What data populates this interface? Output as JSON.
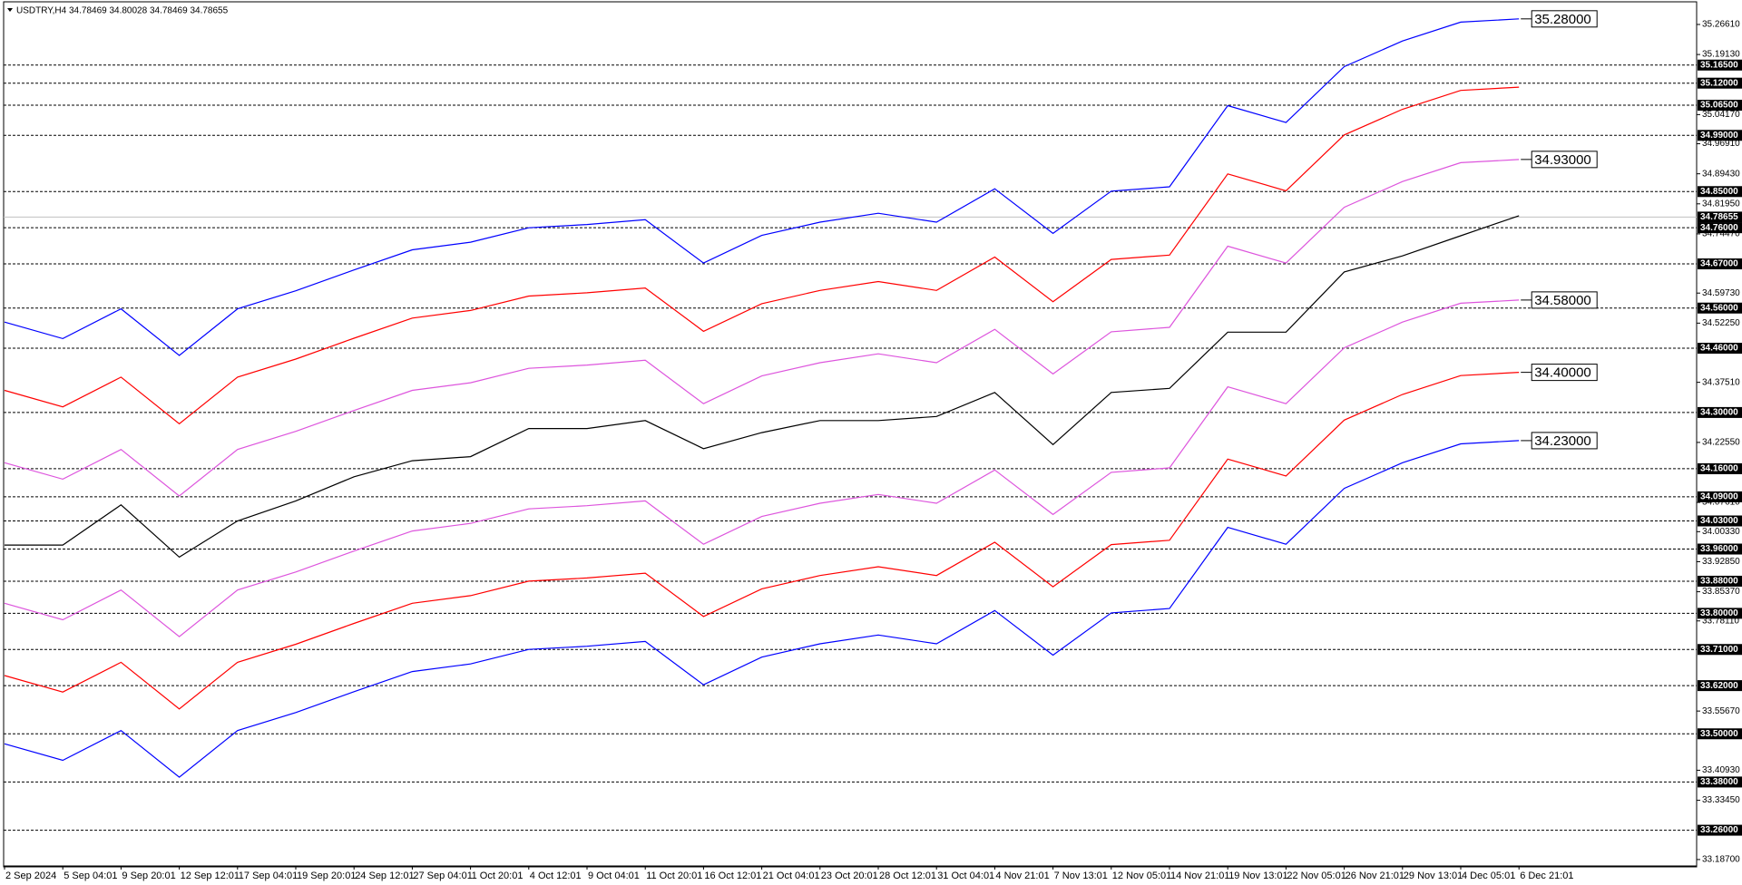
{
  "chart_data": {
    "type": "line",
    "title": "USDTRY,H4  34.78469 34.80028 34.78469 34.78655",
    "categories": [
      "2 Sep 2024",
      "5 Sep 04:01",
      "9 Sep 20:01",
      "12 Sep 12:01",
      "17 Sep 04:01",
      "19 Sep 20:01",
      "24 Sep 12:01",
      "27 Sep 04:01",
      "1 Oct 20:01",
      "4 Oct 12:01",
      "9 Oct 04:01",
      "11 Oct 20:01",
      "16 Oct 12:01",
      "21 Oct 04:01",
      "23 Oct 20:01",
      "28 Oct 12:01",
      "31 Oct 04:01",
      "4 Nov 21:01",
      "7 Nov 13:01",
      "12 Nov 05:01",
      "14 Nov 21:01",
      "19 Nov 13:01",
      "22 Nov 05:01",
      "26 Nov 21:01",
      "29 Nov 13:01",
      "4 Dec 05:01",
      "6 Dec 21:01"
    ],
    "series": [
      {
        "color": "#0000ff",
        "values": [
          34.525,
          34.484,
          34.558,
          34.442,
          34.558,
          34.603,
          34.655,
          34.705,
          34.724,
          34.76,
          34.768,
          34.78,
          34.672,
          34.741,
          34.774,
          34.796,
          34.774,
          34.857,
          34.746,
          34.851,
          34.862,
          35.064,
          35.022,
          35.161,
          35.225,
          35.272,
          35.28
        ]
      },
      {
        "color": "#ff0000",
        "values": [
          34.355,
          34.314,
          34.388,
          34.272,
          34.388,
          34.433,
          34.485,
          34.535,
          34.554,
          34.59,
          34.598,
          34.61,
          34.502,
          34.571,
          34.604,
          34.626,
          34.604,
          34.687,
          34.576,
          34.681,
          34.692,
          34.894,
          34.852,
          34.991,
          35.055,
          35.102,
          35.11
        ]
      },
      {
        "color": "#dd55dd",
        "values": [
          34.175,
          34.134,
          34.208,
          34.092,
          34.208,
          34.253,
          34.305,
          34.355,
          34.374,
          34.41,
          34.418,
          34.43,
          34.322,
          34.391,
          34.424,
          34.446,
          34.424,
          34.507,
          34.396,
          34.501,
          34.512,
          34.714,
          34.672,
          34.811,
          34.875,
          34.922,
          34.93
        ]
      },
      {
        "color": "#000000",
        "values": [
          33.97,
          33.97,
          34.07,
          33.94,
          34.03,
          34.08,
          34.14,
          34.18,
          34.19,
          34.26,
          34.26,
          34.28,
          34.21,
          34.25,
          34.28,
          34.28,
          34.29,
          34.35,
          34.22,
          34.35,
          34.36,
          34.5,
          34.5,
          34.65,
          34.69,
          34.74,
          34.79
        ]
      },
      {
        "color": "#dd55dd",
        "values": [
          33.825,
          33.784,
          33.858,
          33.742,
          33.858,
          33.903,
          33.955,
          34.005,
          34.024,
          34.06,
          34.068,
          34.08,
          33.972,
          34.041,
          34.074,
          34.096,
          34.074,
          34.157,
          34.046,
          34.151,
          34.162,
          34.364,
          34.322,
          34.461,
          34.525,
          34.572,
          34.58
        ]
      },
      {
        "color": "#ff0000",
        "values": [
          33.645,
          33.604,
          33.678,
          33.562,
          33.678,
          33.723,
          33.775,
          33.825,
          33.844,
          33.88,
          33.888,
          33.9,
          33.792,
          33.861,
          33.894,
          33.916,
          33.894,
          33.977,
          33.866,
          33.971,
          33.982,
          34.184,
          34.142,
          34.281,
          34.345,
          34.392,
          34.4
        ]
      },
      {
        "color": "#0000ff",
        "values": [
          33.475,
          33.434,
          33.508,
          33.392,
          33.508,
          33.553,
          33.605,
          33.655,
          33.674,
          33.71,
          33.718,
          33.73,
          33.622,
          33.691,
          33.724,
          33.746,
          33.724,
          33.807,
          33.696,
          33.801,
          33.812,
          34.014,
          33.972,
          34.111,
          34.175,
          34.222,
          34.23
        ]
      }
    ],
    "ylim": [
      33.171,
      35.327
    ],
    "yticks": [
      {
        "value": 35.2661,
        "label": "35.26610"
      },
      {
        "value": 35.1913,
        "label": "35.19130"
      },
      {
        "value": 35.0417,
        "label": "35.04170"
      },
      {
        "value": 34.9691,
        "label": "34.96910"
      },
      {
        "value": 34.8943,
        "label": "34.89430"
      },
      {
        "value": 34.8195,
        "label": "34.81950"
      },
      {
        "value": 34.7447,
        "label": "34.74470"
      },
      {
        "value": 34.5973,
        "label": "34.59730"
      },
      {
        "value": 34.5225,
        "label": "34.52250"
      },
      {
        "value": 34.3751,
        "label": "34.37510"
      },
      {
        "value": 34.2255,
        "label": "34.22550"
      },
      {
        "value": 34.0761,
        "label": "34.07610"
      },
      {
        "value": 34.0033,
        "label": "34.00330"
      },
      {
        "value": 33.9285,
        "label": "33.92850"
      },
      {
        "value": 33.8537,
        "label": "33.85370"
      },
      {
        "value": 33.7811,
        "label": "33.78110"
      },
      {
        "value": 33.5567,
        "label": "33.55670"
      },
      {
        "value": 33.4093,
        "label": "33.40930"
      },
      {
        "value": 33.3345,
        "label": "33.33450"
      },
      {
        "value": 33.187,
        "label": "33.18700"
      }
    ],
    "levels": [
      {
        "value": 35.165,
        "label": "35.16500"
      },
      {
        "value": 35.12,
        "label": "35.12000"
      },
      {
        "value": 35.065,
        "label": "35.06500"
      },
      {
        "value": 34.99,
        "label": "34.99000"
      },
      {
        "value": 34.85,
        "label": "34.85000"
      },
      {
        "value": 34.76,
        "label": "34.76000"
      },
      {
        "value": 34.67,
        "label": "34.67000"
      },
      {
        "value": 34.56,
        "label": "34.56000"
      },
      {
        "value": 34.46,
        "label": "34.46000"
      },
      {
        "value": 34.3,
        "label": "34.30000"
      },
      {
        "value": 34.16,
        "label": "34.16000"
      },
      {
        "value": 34.09,
        "label": "34.09000"
      },
      {
        "value": 34.03,
        "label": "34.03000"
      },
      {
        "value": 33.96,
        "label": "33.96000"
      },
      {
        "value": 33.88,
        "label": "33.88000"
      },
      {
        "value": 33.8,
        "label": "33.80000"
      },
      {
        "value": 33.71,
        "label": "33.71000"
      },
      {
        "value": 33.62,
        "label": "33.62000"
      },
      {
        "value": 33.5,
        "label": "33.50000"
      },
      {
        "value": 33.38,
        "label": "33.38000"
      },
      {
        "value": 33.26,
        "label": "33.26000"
      }
    ],
    "last_price": {
      "value": 34.78655,
      "label": "34.78655"
    },
    "annotations": [
      {
        "value": 35.28,
        "label": "35.28000"
      },
      {
        "value": 34.93,
        "label": "34.93000"
      },
      {
        "value": 34.58,
        "label": "34.58000"
      },
      {
        "value": 34.4,
        "label": "34.40000"
      },
      {
        "value": 34.23,
        "label": "34.23000"
      }
    ]
  }
}
